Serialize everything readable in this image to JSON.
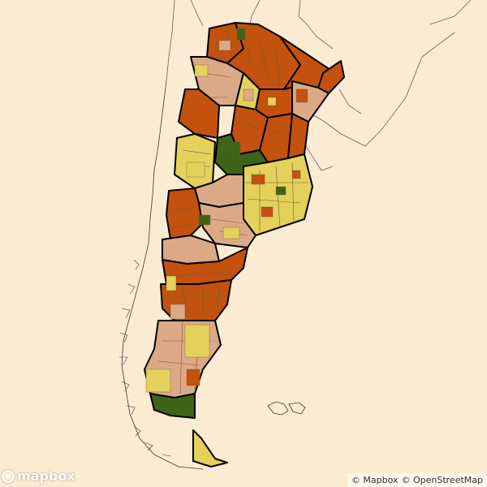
{
  "attribution": {
    "mapbox": "© Mapbox",
    "osm": "© OpenStreetMap"
  },
  "logo": {
    "text": "mapbox"
  },
  "colors": {
    "background": "#fbebd3",
    "dark_orange": "#c2520e",
    "tan": "#dca987",
    "yellow": "#e3d15c",
    "dark_green": "#3e6418",
    "boundary": "#000000",
    "thin_line": "#5a4a3a"
  }
}
